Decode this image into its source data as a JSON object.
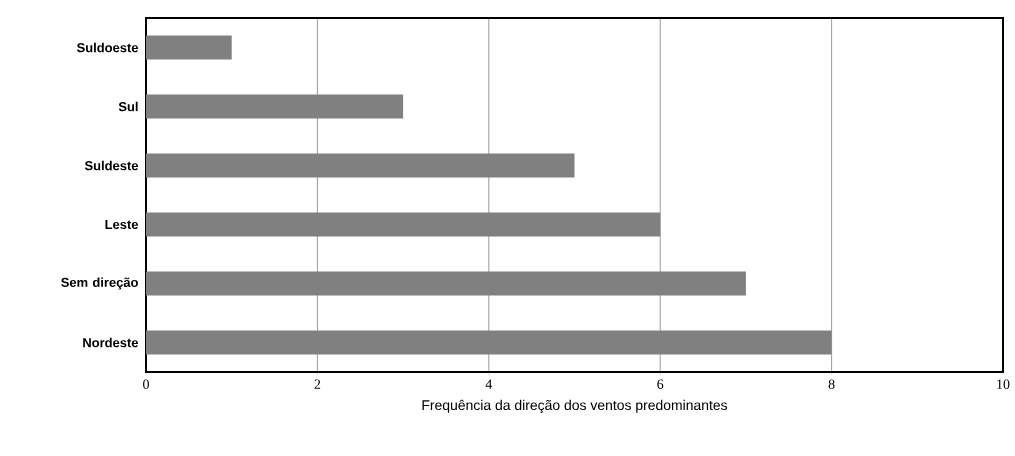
{
  "chart_data": {
    "type": "bar",
    "orientation": "horizontal",
    "categories": [
      "Suldoeste",
      "Sul",
      "Suldeste",
      "Leste",
      "Sem direção",
      "Nordeste"
    ],
    "values": [
      1,
      3,
      5,
      6,
      7,
      8
    ],
    "color": "#808080",
    "xlabel": "Frequência da direção dos ventos predominantes",
    "xlim": [
      0,
      10
    ],
    "xticks": [
      0,
      2,
      4,
      6,
      8,
      10
    ],
    "grid": "x"
  }
}
